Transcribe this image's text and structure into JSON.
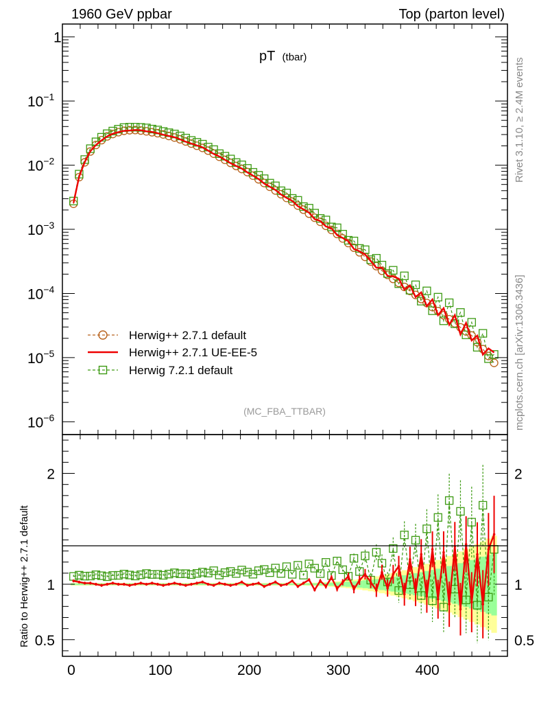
{
  "chart_data": {
    "type": "line",
    "header_left": "1960 GeV ppbar",
    "header_right": "Top (parton level)",
    "title_main": "pT",
    "title_sub": "(tbar)",
    "watermark": "(MC_FBA_TTBAR)",
    "side_text_top": "Rivet 3.1.10, ≥ 2.4M events",
    "side_text_bottom": "mcplots.cern.ch [arXiv:1306.3436]",
    "ratio_ylabel": "Ratio to Herwig++ 2.7.1 default",
    "xlim": [
      -10,
      490
    ],
    "ylim_main_log10": [
      -6.2,
      0.2
    ],
    "ylim_ratio": [
      0.35,
      2.35
    ],
    "x_ticks": [
      0,
      100,
      200,
      300,
      400
    ],
    "y_ticks_main": [
      {
        "value": 1,
        "base": "1",
        "exp": ""
      },
      {
        "value": 0.1,
        "base": "10",
        "exp": "−1"
      },
      {
        "value": 0.01,
        "base": "10",
        "exp": "−2"
      },
      {
        "value": 0.001,
        "base": "10",
        "exp": "−3"
      },
      {
        "value": 0.0001,
        "base": "10",
        "exp": "−4"
      },
      {
        "value": 1e-05,
        "base": "10",
        "exp": "−5"
      },
      {
        "value": 1e-06,
        "base": "10",
        "exp": "−6"
      }
    ],
    "y_ticks_ratio": [
      {
        "value": 2,
        "label": "2"
      },
      {
        "value": 1,
        "label": "1"
      },
      {
        "value": 0.5,
        "label": "0.5"
      }
    ],
    "legend": [
      {
        "name": "Herwig++ 2.7.1 default",
        "color": "#b8611a",
        "style": "dashed-circle"
      },
      {
        "name": "Herwig++ 2.7.1 UE-EE-5",
        "color": "#ee0000",
        "style": "solid"
      },
      {
        "name": "Herwig 7.2.1 default",
        "color": "#3c9a12",
        "style": "dashed-square"
      }
    ],
    "colors": {
      "band_yellow": "#ffff99",
      "band_green": "#99ff99"
    },
    "main_anchors": {
      "x": [
        2.5,
        10,
        20,
        30,
        40,
        50,
        60,
        70,
        80,
        100,
        120,
        150,
        200,
        250,
        300,
        350,
        400,
        450,
        477.5
      ],
      "y": [
        0.0025,
        0.0078,
        0.0155,
        0.0225,
        0.028,
        0.032,
        0.0345,
        0.0355,
        0.0345,
        0.031,
        0.026,
        0.018,
        0.0075,
        0.0026,
        0.00082,
        0.00022,
        7e-05,
        2.2e-05,
        7.5e-06
      ]
    },
    "ratio_red_noise": [
      0.02,
      0.01,
      0.0,
      0.01,
      0.0,
      -0.01,
      0.0,
      0.01,
      0.0,
      0.0,
      -0.01,
      0.0,
      0.01,
      0.0,
      0.01,
      0.0,
      -0.01,
      0.0,
      0.01,
      0.0,
      -0.01,
      0.0,
      0.01,
      0.02,
      0.0,
      -0.01,
      0.01,
      0.0,
      -0.01,
      0.0,
      0.02,
      -0.01,
      0.0,
      0.01,
      -0.02,
      0.0,
      0.02,
      -0.01,
      0.0,
      0.03,
      -0.02,
      0.01,
      0.04,
      -0.05,
      0.03,
      -0.02,
      0.06,
      -0.04,
      0.02,
      0.08,
      -0.05,
      0.04,
      0.1,
      0.02,
      -0.06,
      0.12,
      -0.04,
      0.1,
      0.18,
      -0.1,
      0.25,
      -0.08,
      0.3,
      -0.12,
      0.35,
      -0.15,
      0.32,
      -0.2,
      0.38,
      -0.25,
      0.4,
      -0.18,
      0.3,
      -0.2,
      0.35,
      0.5
    ],
    "ratio_green_noise": [
      0.0,
      0.01,
      0.0,
      0.0,
      0.01,
      0.0,
      -0.01,
      0.0,
      0.0,
      0.01,
      0.0,
      -0.01,
      0.0,
      0.01,
      0.0,
      0.0,
      -0.01,
      0.0,
      0.01,
      0.0,
      0.0,
      -0.01,
      0.0,
      0.01,
      0.0,
      0.02,
      -0.02,
      0.0,
      0.01,
      -0.01,
      0.02,
      0.0,
      -0.02,
      0.01,
      0.02,
      -0.01,
      0.03,
      -0.02,
      0.04,
      -0.03,
      0.05,
      -0.04,
      0.06,
      0.02,
      -0.03,
      0.07,
      -0.05,
      0.08,
      0.0,
      -0.06,
      0.1,
      -0.02,
      0.12,
      -0.1,
      0.15,
      0.05,
      -0.12,
      0.18,
      -0.2,
      0.3,
      -0.15,
      0.25,
      -0.25,
      0.35,
      -0.3,
      0.45,
      -0.36,
      0.6,
      -0.2,
      0.5,
      -0.3,
      0.4,
      -0.35,
      0.55,
      -0.28,
      0.15
    ]
  }
}
